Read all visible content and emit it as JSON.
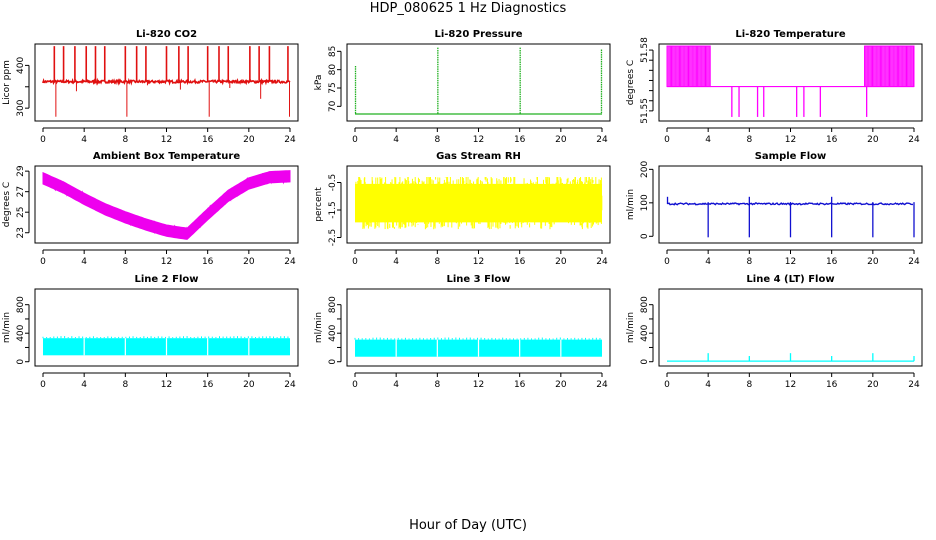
{
  "figure": {
    "title": "HDP_080625  1 Hz Diagnostics",
    "xlabel": "Hour of Day (UTC)"
  },
  "chart_data": [
    {
      "id": "co2",
      "type": "line",
      "title": "Li-820 CO2",
      "ylabel": "Licor ppm",
      "xlim": [
        0,
        24
      ],
      "xticks": [
        0,
        4,
        8,
        12,
        16,
        20,
        24
      ],
      "ylim": [
        270,
        450
      ],
      "yticks": [
        300,
        350,
        400
      ],
      "ytick_labels": [
        "300",
        "",
        "400"
      ],
      "color": "#e01010",
      "series": {
        "baseline": 362,
        "noise": 6,
        "spikes_up_to": 445,
        "spikes_down_to": 280,
        "spike_hours": [
          1.1,
          2.0,
          3.1,
          4.2,
          5.1,
          6.0,
          8.0,
          9.1,
          10.0,
          12.0,
          13.2,
          14.1,
          16.0,
          17.1,
          18.0,
          20.1,
          21.0,
          22.0,
          23.8
        ]
      }
    },
    {
      "id": "pressure",
      "type": "line",
      "title": "Li-820 Pressure",
      "ylabel": "kPa",
      "xlim": [
        0,
        24
      ],
      "xticks": [
        0,
        4,
        8,
        12,
        16,
        20,
        24
      ],
      "ylim": [
        66,
        87
      ],
      "yticks": [
        70,
        75,
        80,
        85
      ],
      "ytick_labels": [
        "70",
        "75",
        "80",
        "85"
      ],
      "color": "#20b020",
      "series": {
        "baseline": 67.9,
        "spikes": [
          {
            "hour": 0.05,
            "value": 81
          },
          {
            "hour": 8.05,
            "value": 86
          },
          {
            "hour": 16.05,
            "value": 86
          },
          {
            "hour": 23.95,
            "value": 85.5
          }
        ]
      }
    },
    {
      "id": "li_temp",
      "type": "line",
      "title": "Li-820 Temperature",
      "ylabel": "degrees C",
      "xlim": [
        0,
        24
      ],
      "xticks": [
        0,
        4,
        8,
        12,
        16,
        20,
        24
      ],
      "ylim": [
        51.545,
        51.583
      ],
      "yticks": [
        51.55,
        51.555,
        51.56,
        51.565,
        51.57,
        51.575,
        51.58
      ],
      "ytick_labels": [
        "51.55",
        "",
        "",
        "",
        "",
        "",
        "51.58"
      ],
      "color": "#ff00ff",
      "series": {
        "baseline": 51.562,
        "high": 51.582,
        "low": 51.547,
        "dense_high_ranges": [
          [
            0,
            4.2
          ],
          [
            19.2,
            24
          ]
        ],
        "drop_hours": [
          6.3,
          7.0,
          8.8,
          9.4,
          12.6,
          13.3,
          14.9,
          19.4
        ]
      }
    },
    {
      "id": "box_temp",
      "type": "line",
      "title": "Ambient Box Temperature",
      "ylabel": "degrees C",
      "xlim": [
        0,
        24
      ],
      "xticks": [
        0,
        4,
        8,
        12,
        16,
        20,
        24
      ],
      "ylim": [
        22,
        29.5
      ],
      "yticks": [
        23,
        25,
        27,
        29
      ],
      "ytick_labels": [
        "23",
        "25",
        "27",
        "29"
      ],
      "color": "#ee00ee",
      "series": {
        "points": [
          [
            0,
            28.3
          ],
          [
            2,
            27.4
          ],
          [
            4,
            26.3
          ],
          [
            6,
            25.3
          ],
          [
            8,
            24.5
          ],
          [
            10,
            23.8
          ],
          [
            12,
            23.2
          ],
          [
            14,
            22.9
          ],
          [
            16,
            24.8
          ],
          [
            18,
            26.6
          ],
          [
            20,
            27.8
          ],
          [
            22,
            28.4
          ],
          [
            24,
            28.5
          ]
        ],
        "band": 0.55
      }
    },
    {
      "id": "rh",
      "type": "line",
      "title": "Gas Stream RH",
      "ylabel": "percent",
      "xlim": [
        0,
        24
      ],
      "xticks": [
        0,
        4,
        8,
        12,
        16,
        20,
        24
      ],
      "ylim": [
        -2.7,
        0.1
      ],
      "yticks": [
        -2.5,
        -1.5,
        -0.5
      ],
      "ytick_labels": [
        "-2.5",
        "-1.5",
        "-0.5"
      ],
      "color": "#ffff00",
      "series": {
        "center": -1.2,
        "min": -2.5,
        "max": -0.3
      }
    },
    {
      "id": "sample_flow",
      "type": "line",
      "title": "Sample Flow",
      "ylabel": "ml/min",
      "xlim": [
        0,
        24
      ],
      "xticks": [
        0,
        4,
        8,
        12,
        16,
        20,
        24
      ],
      "ylim": [
        -20,
        210
      ],
      "yticks": [
        0,
        100,
        200
      ],
      "ytick_labels": [
        "0",
        "100",
        "200"
      ],
      "color": "#1010d0",
      "series": {
        "baseline": 97,
        "drop_hours": [
          4.0,
          8.0,
          12.0,
          16.0,
          20.0,
          24.0
        ],
        "drop_to": -3,
        "peak_to": 118
      }
    },
    {
      "id": "line2",
      "type": "line",
      "title": "Line 2 Flow",
      "ylabel": "ml/min",
      "xlim": [
        0,
        24
      ],
      "xticks": [
        0,
        4,
        8,
        12,
        16,
        20,
        24
      ],
      "ylim": [
        -60,
        1020
      ],
      "yticks": [
        0,
        200,
        400,
        600,
        800
      ],
      "ytick_labels": [
        "0",
        "",
        "400",
        "",
        "800"
      ],
      "color": "#00ffff",
      "series": {
        "low": 90,
        "high": 330,
        "gap_hours": [
          4.0,
          8.0,
          12.0,
          16.0,
          20.0
        ]
      }
    },
    {
      "id": "line3",
      "type": "line",
      "title": "Line 3 Flow",
      "ylabel": "ml/min",
      "xlim": [
        0,
        24
      ],
      "xticks": [
        0,
        4,
        8,
        12,
        16,
        20,
        24
      ],
      "ylim": [
        -60,
        1020
      ],
      "yticks": [
        0,
        200,
        400,
        600,
        800
      ],
      "ytick_labels": [
        "0",
        "",
        "400",
        "",
        "800"
      ],
      "color": "#00ffff",
      "series": {
        "low": 70,
        "high": 310,
        "gap_hours": [
          4.0,
          8.0,
          12.0,
          16.0,
          20.0
        ]
      }
    },
    {
      "id": "line4",
      "type": "line",
      "title": "Line 4 (LT) Flow",
      "ylabel": "ml/min",
      "xlim": [
        0,
        24
      ],
      "xticks": [
        0,
        4,
        8,
        12,
        16,
        20,
        24
      ],
      "ylim": [
        -60,
        1020
      ],
      "yticks": [
        0,
        200,
        400,
        600,
        800
      ],
      "ytick_labels": [
        "0",
        "",
        "400",
        "",
        "800"
      ],
      "color": "#00ffff",
      "series": {
        "baseline": 8,
        "spikes": [
          {
            "hour": 4.0,
            "value": 120
          },
          {
            "hour": 8.0,
            "value": 80
          },
          {
            "hour": 12.0,
            "value": 120
          },
          {
            "hour": 16.0,
            "value": 80
          },
          {
            "hour": 20.0,
            "value": 120
          },
          {
            "hour": 24.0,
            "value": 80
          }
        ]
      }
    }
  ]
}
